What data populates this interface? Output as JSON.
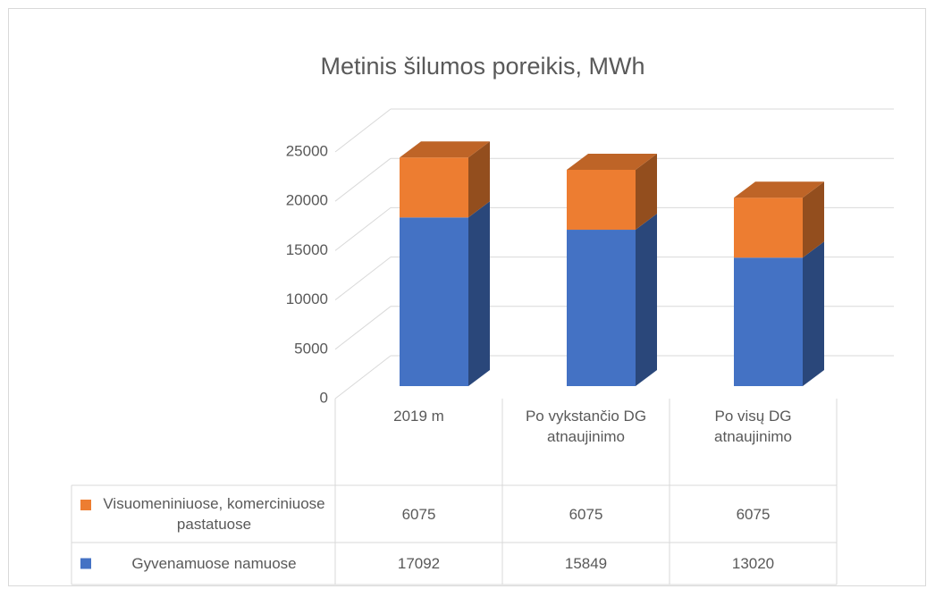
{
  "chart_data": {
    "type": "bar3d_stacked",
    "title": "Metinis šilumos poreikis, MWh",
    "categories": [
      "2019 m",
      "Po vykstančio DG atnaujinimo",
      "Po visų DG atnaujinimo"
    ],
    "series": [
      {
        "name": "Gyvenamuose namuose",
        "color": "#4472c4",
        "values": [
          17092,
          15849,
          13020
        ]
      },
      {
        "name": "Visuomeniniuose, komerciniuose pastatuose",
        "color": "#ed7d31",
        "values": [
          6075,
          6075,
          6075
        ]
      }
    ],
    "ylim": [
      0,
      25000
    ],
    "yticks": [
      0,
      5000,
      10000,
      15000,
      20000,
      25000
    ],
    "grid": true,
    "data_table": true
  }
}
